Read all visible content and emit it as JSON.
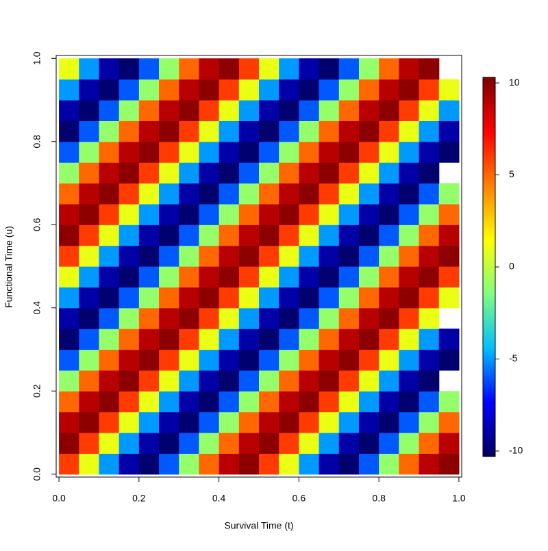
{
  "chart_data": {
    "type": "heatmap",
    "xlabel": "Survival Time (t)",
    "ylabel": "Functional Time (u)",
    "x": [
      0.025,
      0.075,
      0.125,
      0.175,
      0.225,
      0.275,
      0.325,
      0.375,
      0.425,
      0.475,
      0.525,
      0.575,
      0.625,
      0.675,
      0.725,
      0.775,
      0.825,
      0.875,
      0.925,
      0.975
    ],
    "y": [
      0.025,
      0.075,
      0.125,
      0.175,
      0.225,
      0.275,
      0.325,
      0.375,
      0.425,
      0.475,
      0.525,
      0.575,
      0.625,
      0.675,
      0.725,
      0.775,
      0.825,
      0.875,
      0.925,
      0.975
    ],
    "z": [
      [
        6,
        1,
        -5,
        -9,
        -10,
        -6,
        -1,
        5,
        9,
        10,
        6,
        1,
        -5,
        -9,
        -10,
        -6,
        -1,
        5,
        9,
        10
      ],
      [
        10,
        6,
        1,
        -5,
        -9,
        -10,
        -6,
        -1,
        5,
        9,
        10,
        6,
        1,
        -5,
        -9,
        -10,
        -6,
        -1,
        5,
        9
      ],
      [
        9,
        10,
        6,
        1,
        -5,
        -9,
        -10,
        -6,
        -1,
        5,
        9,
        10,
        6,
        1,
        -5,
        -9,
        -10,
        -6,
        -1,
        5
      ],
      [
        5,
        9,
        10,
        6,
        1,
        -5,
        -9,
        -10,
        -6,
        -1,
        5,
        9,
        10,
        6,
        1,
        -5,
        -9,
        -10,
        -6,
        -1
      ],
      [
        -1,
        5,
        9,
        10,
        6,
        1,
        -5,
        -9,
        -10,
        -6,
        -1,
        5,
        9,
        10,
        6,
        1,
        -5,
        -9,
        -10,
        null
      ],
      [
        -6,
        -1,
        5,
        9,
        10,
        6,
        1,
        -5,
        -9,
        -10,
        -6,
        -1,
        5,
        9,
        10,
        6,
        1,
        -5,
        -9,
        -10
      ],
      [
        -10,
        -6,
        -1,
        5,
        9,
        10,
        6,
        1,
        -5,
        -9,
        -10,
        -6,
        -1,
        5,
        9,
        10,
        6,
        1,
        -5,
        -9
      ],
      [
        -9,
        -10,
        -6,
        -1,
        5,
        9,
        10,
        6,
        1,
        -5,
        -9,
        -10,
        -6,
        -1,
        5,
        9,
        10,
        6,
        1,
        null
      ],
      [
        -5,
        -9,
        -10,
        -6,
        -1,
        5,
        9,
        10,
        6,
        1,
        -5,
        -9,
        -10,
        -6,
        -1,
        5,
        9,
        10,
        6,
        1
      ],
      [
        1,
        -5,
        -9,
        -10,
        -6,
        -1,
        5,
        9,
        10,
        6,
        1,
        -5,
        -9,
        -10,
        -6,
        -1,
        5,
        9,
        10,
        6
      ],
      [
        6,
        1,
        -5,
        -9,
        -10,
        -6,
        -1,
        5,
        9,
        10,
        6,
        1,
        -5,
        -9,
        -10,
        -6,
        -1,
        5,
        9,
        10
      ],
      [
        10,
        6,
        1,
        -5,
        -9,
        -10,
        -6,
        -1,
        5,
        9,
        10,
        6,
        1,
        -5,
        -9,
        -10,
        -6,
        -1,
        5,
        9
      ],
      [
        9,
        10,
        6,
        1,
        -5,
        -9,
        -10,
        -6,
        -1,
        5,
        9,
        10,
        6,
        1,
        -5,
        -9,
        -10,
        -6,
        -1,
        5
      ],
      [
        5,
        9,
        10,
        6,
        1,
        -5,
        -9,
        -10,
        -6,
        -1,
        5,
        9,
        10,
        6,
        1,
        -5,
        -9,
        -10,
        -6,
        -1
      ],
      [
        -1,
        5,
        9,
        10,
        6,
        1,
        -5,
        -9,
        -10,
        -6,
        -1,
        5,
        9,
        10,
        6,
        1,
        -5,
        -9,
        -10,
        null
      ],
      [
        -6,
        -1,
        5,
        9,
        10,
        6,
        1,
        -5,
        -9,
        -10,
        -6,
        -1,
        5,
        9,
        10,
        6,
        1,
        -5,
        -9,
        -10
      ],
      [
        -10,
        -6,
        -1,
        5,
        9,
        10,
        6,
        1,
        -5,
        -9,
        -10,
        -6,
        -1,
        5,
        9,
        10,
        6,
        1,
        -5,
        -9
      ],
      [
        -9,
        -10,
        -6,
        -1,
        5,
        9,
        10,
        6,
        1,
        -5,
        -9,
        -10,
        -6,
        -1,
        5,
        9,
        10,
        6,
        1,
        -5
      ],
      [
        -5,
        -9,
        -10,
        -6,
        -1,
        5,
        9,
        10,
        6,
        1,
        -5,
        -9,
        -10,
        -6,
        -1,
        5,
        9,
        10,
        6,
        1
      ],
      [
        1,
        -5,
        -9,
        -10,
        -6,
        -1,
        5,
        9,
        10,
        6,
        1,
        -5,
        -9,
        -10,
        -6,
        -1,
        5,
        9,
        10,
        null
      ]
    ],
    "xlim": [
      -0.007,
      1.007
    ],
    "ylim": [
      -0.007,
      1.007
    ],
    "xticks": [
      {
        "value": 0,
        "label": "0.0"
      },
      0.2,
      0.4,
      0.6,
      0.8,
      {
        "value": 1,
        "label": "1.0"
      }
    ],
    "yticks": [
      {
        "value": 0,
        "label": "0.0"
      },
      0.2,
      0.4,
      0.6,
      0.8,
      {
        "value": 1,
        "label": "1.0"
      }
    ],
    "zlim": [
      -10.3,
      10.3
    ],
    "zticks": [
      -10,
      -5,
      0,
      5,
      10
    ],
    "colormap": [
      "#00005f",
      "#0000ff",
      "#00bfff",
      "#7fff7f",
      "#ffff00",
      "#ff8000",
      "#ff0000",
      "#7f0000"
    ]
  }
}
